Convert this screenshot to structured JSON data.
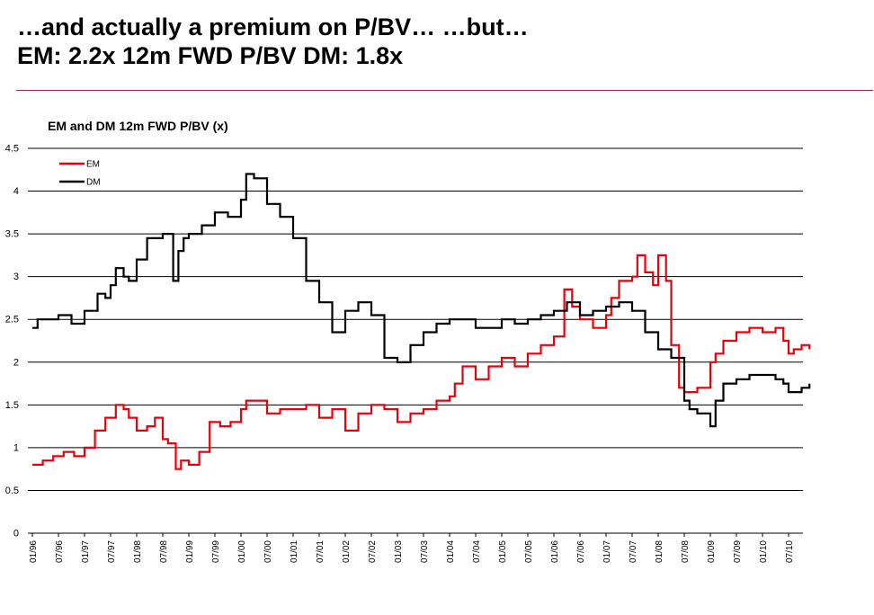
{
  "headline": {
    "line1": "…and actually a premium on P/BV… …but…",
    "line2": "EM: 2.2x 12m FWD P/BV DM: 1.8x"
  },
  "colors": {
    "rule": "#a3294a",
    "em": "#e8000b",
    "dm": "#000000",
    "grid": "#000000"
  },
  "chart_data": {
    "type": "line",
    "title": "EM and DM 12m FWD P/BV (x)",
    "xlabel": "",
    "ylabel": "",
    "ylim": [
      0,
      4.5
    ],
    "yticks": [
      0,
      0.5,
      1,
      1.5,
      2,
      2.5,
      3,
      3.5,
      4,
      4.5
    ],
    "ytick_labels": [
      "0",
      "0.5",
      "1",
      "1.5",
      "2",
      "2.5",
      "3",
      "3.5",
      "4",
      "4.5"
    ],
    "xticks": [
      "01/96",
      "07/96",
      "01/97",
      "07/97",
      "01/98",
      "07/98",
      "01/99",
      "07/99",
      "01/00",
      "07/00",
      "01/01",
      "07/01",
      "01/02",
      "07/02",
      "01/03",
      "07/03",
      "01/04",
      "07/04",
      "01/05",
      "07/05",
      "01/06",
      "07/06",
      "01/07",
      "07/07",
      "01/08",
      "07/08",
      "01/09",
      "07/09",
      "01/10",
      "07/10"
    ],
    "legend_position": "top-left",
    "grid": "horizontal",
    "x_start": 1996.0,
    "x_end": 2010.9,
    "series": [
      {
        "name": "EM",
        "color": "#e8000b",
        "x": [
          1996.0,
          1996.2,
          1996.4,
          1996.6,
          1996.8,
          1997.0,
          1997.2,
          1997.4,
          1997.6,
          1997.75,
          1997.85,
          1998.0,
          1998.2,
          1998.35,
          1998.5,
          1998.6,
          1998.75,
          1998.85,
          1999.0,
          1999.2,
          1999.4,
          1999.6,
          1999.8,
          2000.0,
          2000.1,
          2000.25,
          2000.5,
          2000.75,
          2001.0,
          2001.25,
          2001.5,
          2001.75,
          2002.0,
          2002.25,
          2002.5,
          2002.75,
          2003.0,
          2003.25,
          2003.5,
          2003.75,
          2004.0,
          2004.1,
          2004.25,
          2004.5,
          2004.75,
          2005.0,
          2005.25,
          2005.5,
          2005.75,
          2006.0,
          2006.2,
          2006.35,
          2006.5,
          2006.75,
          2007.0,
          2007.1,
          2007.25,
          2007.5,
          2007.6,
          2007.75,
          2007.9,
          2008.0,
          2008.15,
          2008.25,
          2008.4,
          2008.5,
          2008.75,
          2009.0,
          2009.1,
          2009.25,
          2009.5,
          2009.75,
          2010.0,
          2010.25,
          2010.4,
          2010.5,
          2010.6,
          2010.75,
          2010.9
        ],
        "values": [
          0.8,
          0.85,
          0.9,
          0.95,
          0.9,
          1.0,
          1.2,
          1.35,
          1.5,
          1.45,
          1.35,
          1.2,
          1.25,
          1.35,
          1.1,
          1.05,
          0.75,
          0.85,
          0.8,
          0.95,
          1.3,
          1.25,
          1.3,
          1.45,
          1.55,
          1.55,
          1.4,
          1.45,
          1.45,
          1.5,
          1.35,
          1.45,
          1.2,
          1.4,
          1.5,
          1.45,
          1.3,
          1.4,
          1.45,
          1.55,
          1.6,
          1.75,
          1.95,
          1.8,
          1.95,
          2.05,
          1.95,
          2.1,
          2.2,
          2.3,
          2.85,
          2.65,
          2.5,
          2.4,
          2.55,
          2.75,
          2.95,
          3.0,
          3.25,
          3.05,
          2.9,
          3.25,
          2.95,
          2.2,
          1.7,
          1.65,
          1.7,
          2.0,
          2.1,
          2.25,
          2.35,
          2.4,
          2.35,
          2.4,
          2.25,
          2.1,
          2.15,
          2.2,
          2.15
        ]
      },
      {
        "name": "DM",
        "color": "#000000",
        "x": [
          1996.0,
          1996.1,
          1996.25,
          1996.5,
          1996.75,
          1997.0,
          1997.25,
          1997.4,
          1997.5,
          1997.6,
          1997.75,
          1997.85,
          1998.0,
          1998.2,
          1998.3,
          1998.5,
          1998.7,
          1998.8,
          1998.9,
          1999.0,
          1999.25,
          1999.5,
          1999.75,
          2000.0,
          2000.1,
          2000.25,
          2000.5,
          2000.75,
          2001.0,
          2001.25,
          2001.5,
          2001.75,
          2002.0,
          2002.25,
          2002.5,
          2002.75,
          2003.0,
          2003.25,
          2003.5,
          2003.75,
          2004.0,
          2004.25,
          2004.5,
          2004.75,
          2005.0,
          2005.25,
          2005.5,
          2005.75,
          2006.0,
          2006.25,
          2006.5,
          2006.75,
          2007.0,
          2007.25,
          2007.5,
          2007.75,
          2008.0,
          2008.25,
          2008.5,
          2008.6,
          2008.75,
          2009.0,
          2009.1,
          2009.25,
          2009.5,
          2009.75,
          2010.0,
          2010.25,
          2010.4,
          2010.5,
          2010.75,
          2010.9
        ],
        "values": [
          2.4,
          2.5,
          2.5,
          2.55,
          2.45,
          2.6,
          2.8,
          2.75,
          2.9,
          3.1,
          3.0,
          2.95,
          3.2,
          3.45,
          3.45,
          3.5,
          2.95,
          3.3,
          3.45,
          3.5,
          3.6,
          3.75,
          3.7,
          3.9,
          4.2,
          4.15,
          3.85,
          3.7,
          3.45,
          2.95,
          2.7,
          2.35,
          2.6,
          2.7,
          2.55,
          2.05,
          2.0,
          2.2,
          2.35,
          2.45,
          2.5,
          2.5,
          2.4,
          2.4,
          2.5,
          2.45,
          2.5,
          2.55,
          2.6,
          2.7,
          2.55,
          2.6,
          2.65,
          2.7,
          2.6,
          2.35,
          2.15,
          2.05,
          1.55,
          1.45,
          1.4,
          1.25,
          1.55,
          1.75,
          1.8,
          1.85,
          1.85,
          1.8,
          1.75,
          1.65,
          1.7,
          1.75
        ]
      }
    ]
  }
}
